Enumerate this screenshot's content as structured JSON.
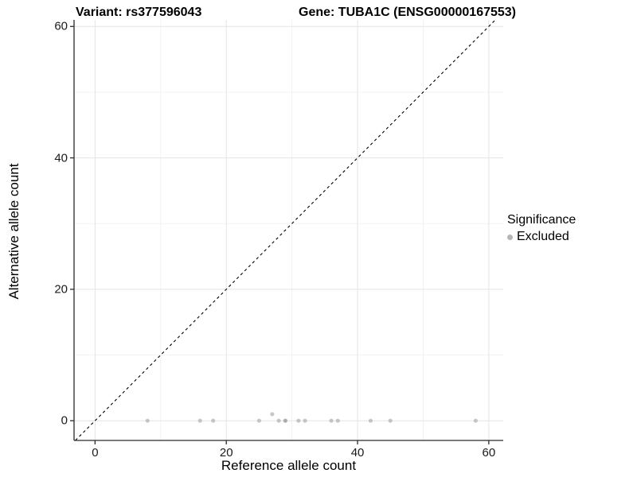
{
  "header": {
    "title_left": "Variant: rs377596043",
    "title_right": "Gene: TUBA1C (ENSG00000167553)"
  },
  "chart_data": {
    "type": "scatter",
    "xlabel": "Reference allele count",
    "ylabel": "Alternative allele count",
    "xlim": [
      -3.2,
      62.2
    ],
    "ylim": [
      -3.0,
      61.0
    ],
    "axis_ticks": [
      0,
      20,
      40,
      60
    ],
    "minor_gridlines": [
      10,
      30,
      50
    ],
    "major_gridlines": [
      0,
      20,
      40,
      60
    ],
    "grid": "on",
    "identity_line": {
      "style": "dashed",
      "slope": 1,
      "intercept": 0,
      "color": "#000000"
    },
    "series": [
      {
        "name": "Excluded",
        "color": "#9a9a9a",
        "fill_opacity": 0.55,
        "points": [
          [
            8,
            0
          ],
          [
            16,
            0
          ],
          [
            18,
            0
          ],
          [
            25,
            0
          ],
          [
            27,
            1
          ],
          [
            28,
            0
          ],
          [
            29,
            0
          ],
          [
            29,
            0
          ],
          [
            31,
            0
          ],
          [
            32,
            0
          ],
          [
            36,
            0
          ],
          [
            37,
            0
          ],
          [
            42,
            0
          ],
          [
            45,
            0
          ],
          [
            58,
            0
          ]
        ]
      }
    ],
    "legend": {
      "position": "right",
      "title": "Significance",
      "items": [
        {
          "label": "Excluded",
          "color": "#b5b5b5"
        }
      ]
    }
  },
  "colors": {
    "background": "#ffffff",
    "axis_line": "#2a2a2a",
    "major_grid": "#e4e4e4",
    "minor_grid": "#f2f2f2",
    "tick_text": "#1a1a1a"
  }
}
